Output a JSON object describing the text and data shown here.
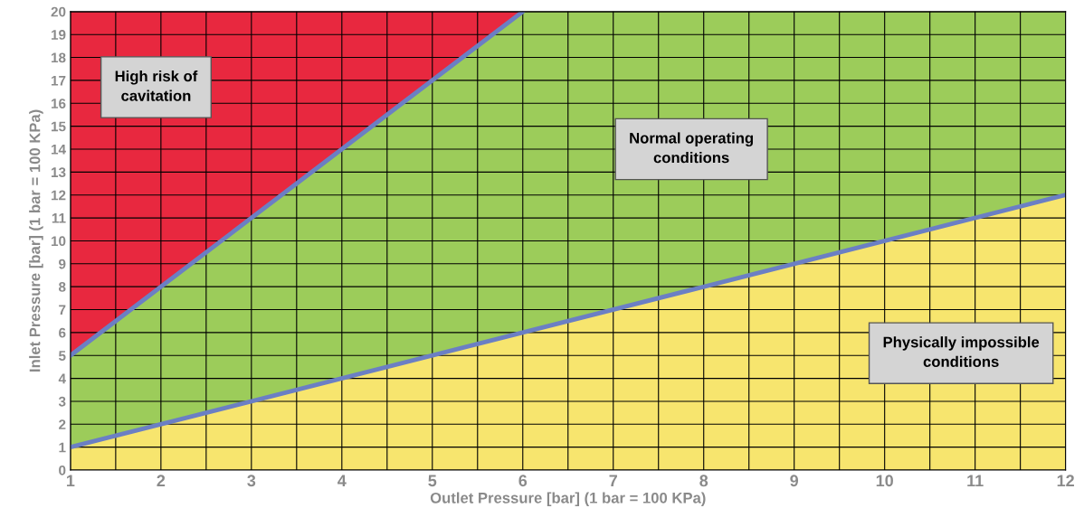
{
  "chart_data": {
    "type": "area",
    "stacked": true,
    "xlabel": "Outlet Pressure [bar] (1 bar = 100 KPa)",
    "ylabel": "Inlet Pressure [bar] (1 bar = 100 KPa)",
    "x": [
      1,
      6,
      12
    ],
    "series": [
      {
        "color": "#f7e56e",
        "values": [
          1,
          6,
          12
        ]
      },
      {
        "color": "#9ccc5a",
        "values": [
          4,
          14,
          8
        ]
      },
      {
        "color": "#e8283f",
        "values": [
          15,
          0,
          0
        ]
      },
      {
        "type": "line",
        "color": "#6b7fc4",
        "x": [
          1,
          6
        ],
        "values": [
          5,
          20
        ]
      },
      {
        "type": "line",
        "color": "#6b7fc4",
        "x": [
          1,
          12
        ],
        "values": [
          1,
          12
        ]
      }
    ],
    "xlim": [
      1,
      12
    ],
    "ylim": [
      0,
      20
    ],
    "xticks": [
      1,
      {
        "value": 1.5,
        "label": null
      },
      2,
      {
        "value": 2.5,
        "label": null
      },
      3,
      {
        "value": 3.5,
        "label": null
      },
      4,
      {
        "value": 4.5,
        "label": null
      },
      5,
      {
        "value": 5.5,
        "label": null
      },
      6,
      {
        "value": 6.5,
        "label": null
      },
      7,
      {
        "value": 7.5,
        "label": null
      },
      8,
      {
        "value": 8.5,
        "label": null
      },
      9,
      {
        "value": 9.5,
        "label": null
      },
      10,
      {
        "value": 10.5,
        "label": null
      },
      11,
      {
        "value": 11.5,
        "label": null
      },
      12
    ],
    "yticks": [
      0,
      1,
      2,
      3,
      4,
      5,
      6,
      7,
      8,
      9,
      10,
      11,
      12,
      13,
      14,
      15,
      16,
      17,
      18,
      19,
      20
    ],
    "grid": true,
    "legend": false,
    "marker": "none",
    "line_style": "solid",
    "annotations": [
      "High risk of\ncavitation",
      "Normal operating\nconditions",
      "Physically impossible\nconditions"
    ]
  }
}
